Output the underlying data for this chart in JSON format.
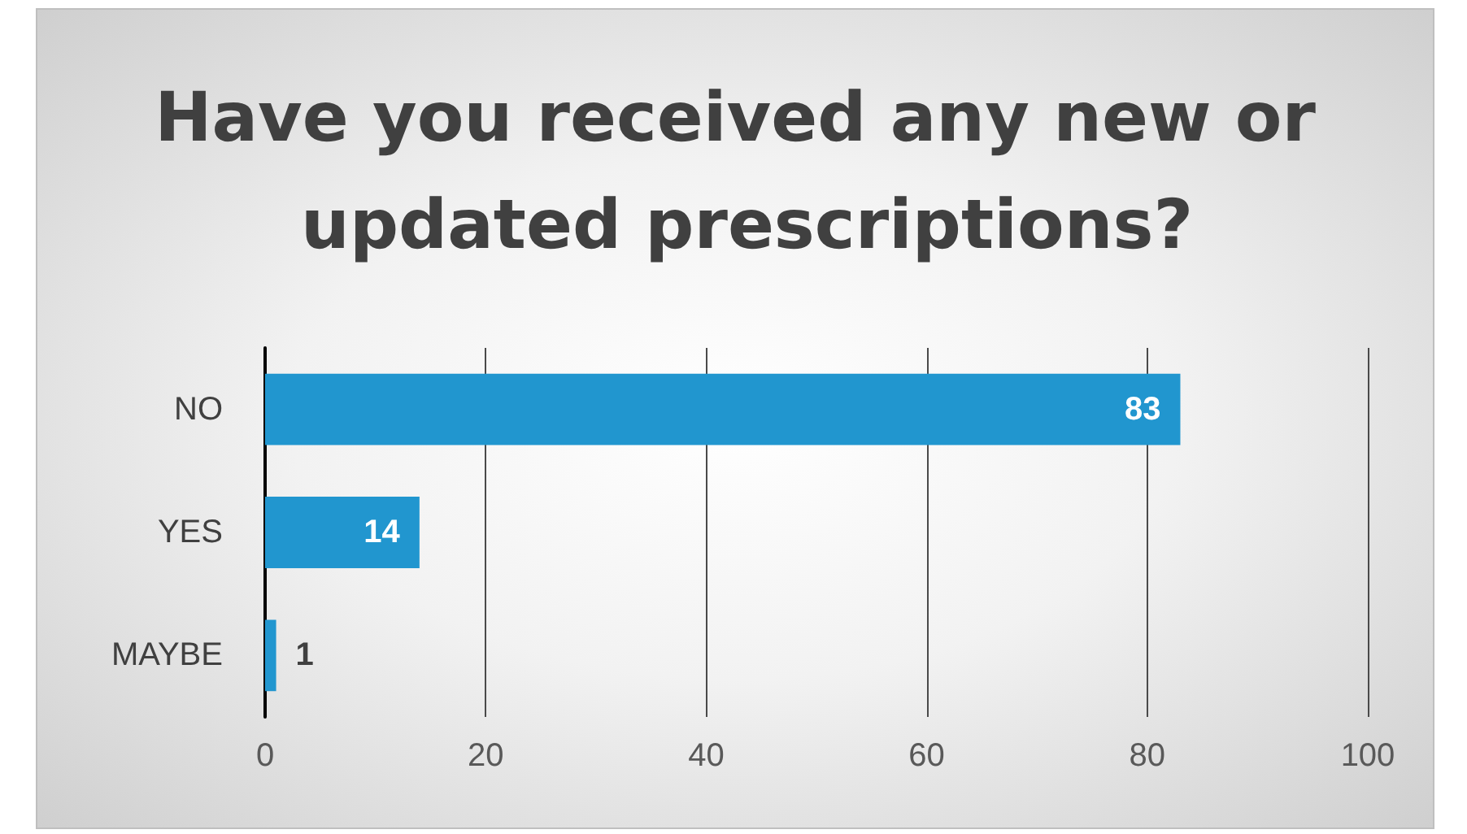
{
  "chart_data": {
    "type": "bar",
    "orientation": "horizontal",
    "title": "Have you received any new or updated prescriptions?",
    "categories": [
      "NO",
      "YES",
      "MAYBE"
    ],
    "values": [
      83,
      14,
      1
    ],
    "color": "#2196cf",
    "xlim": [
      0,
      100
    ],
    "xticks": [
      0,
      20,
      40,
      60,
      80,
      100
    ],
    "grid": "x",
    "data_labels": true
  }
}
